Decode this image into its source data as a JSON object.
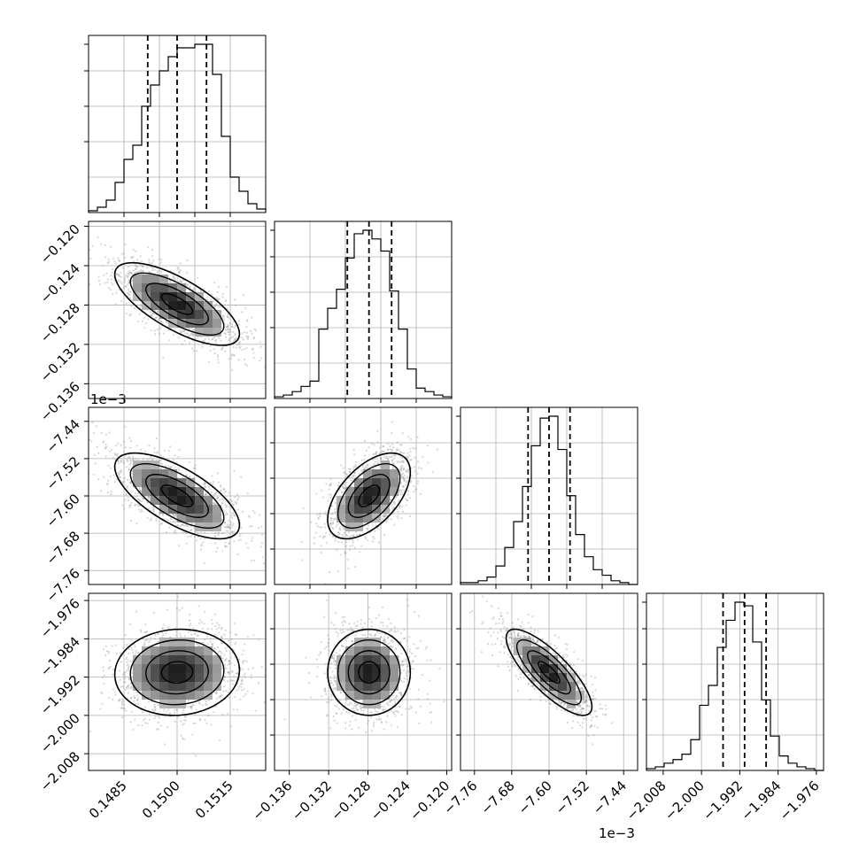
{
  "figure": {
    "type": "corner",
    "parameters": 4,
    "multiplier_label": "1e−3",
    "colors": {
      "frame": "#000000",
      "grid": "#b0b0b0",
      "hist": "#000000",
      "scatter": "#8c8c8c",
      "density": "#000000"
    }
  },
  "chart_data": [
    {
      "type": "histogram",
      "panel": "hist-0",
      "grid": true,
      "xlim": [
        0.1475,
        0.1525
      ],
      "bins": [
        0.1475,
        0.14775,
        0.148,
        0.14825,
        0.1485,
        0.14875,
        0.149,
        0.14925,
        0.1495,
        0.14975,
        0.15,
        0.15025,
        0.1505,
        0.15075,
        0.151,
        0.15125,
        0.1515,
        0.15175,
        0.152,
        0.15225,
        0.1525
      ],
      "counts": [
        0.01,
        0.03,
        0.07,
        0.17,
        0.3,
        0.38,
        0.6,
        0.72,
        0.8,
        0.88,
        0.93,
        0.93,
        0.95,
        0.95,
        0.78,
        0.43,
        0.2,
        0.12,
        0.05,
        0.02
      ],
      "quantiles": [
        0.14917,
        0.15,
        0.15083
      ],
      "ticks": []
    },
    {
      "type": "histogram",
      "panel": "hist-1",
      "grid": true,
      "xlim": [
        -0.1375,
        -0.1195
      ],
      "bins": [
        -0.1375,
        -0.1366,
        -0.1357,
        -0.1348,
        -0.1339,
        -0.133,
        -0.1321,
        -0.1312,
        -0.1303,
        -0.1294,
        -0.1285,
        -0.1276,
        -0.1267,
        -0.1258,
        -0.1249,
        -0.124,
        -0.1231,
        -0.1222,
        -0.1213,
        -0.1204,
        -0.1195
      ],
      "counts": [
        0.01,
        0.02,
        0.04,
        0.07,
        0.1,
        0.4,
        0.52,
        0.63,
        0.81,
        0.95,
        0.97,
        0.92,
        0.85,
        0.62,
        0.4,
        0.17,
        0.06,
        0.04,
        0.02,
        0.01
      ],
      "quantiles": [
        -0.1301,
        -0.1279,
        -0.1256
      ],
      "ticks": []
    },
    {
      "type": "histogram",
      "panel": "hist-2",
      "grid": true,
      "xlim": [
        -7.79,
        -7.41
      ],
      "bins": [
        -7.79,
        -7.771,
        -7.752,
        -7.733,
        -7.714,
        -7.695,
        -7.676,
        -7.657,
        -7.638,
        -7.619,
        -7.6,
        -7.581,
        -7.562,
        -7.543,
        -7.524,
        -7.505,
        -7.486,
        -7.467,
        -7.448,
        -7.429,
        -7.41
      ],
      "counts": [
        0.01,
        0.01,
        0.02,
        0.04,
        0.1,
        0.2,
        0.34,
        0.53,
        0.75,
        0.9,
        0.91,
        0.73,
        0.48,
        0.27,
        0.15,
        0.08,
        0.05,
        0.02,
        0.01,
        0.0
      ],
      "quantiles": [
        -7.645,
        -7.6,
        -7.555
      ],
      "ticks": []
    },
    {
      "type": "histogram",
      "panel": "hist-3",
      "grid": true,
      "xlim": [
        -2.0115,
        -1.9745
      ],
      "bins": [
        -2.0115,
        -2.00965,
        -2.0078,
        -2.00595,
        -2.0041,
        -2.00225,
        -2.0004,
        -1.99855,
        -1.9967,
        -1.99485,
        -1.993,
        -1.99115,
        -1.9893,
        -1.98745,
        -1.9856,
        -1.98375,
        -1.9819,
        -1.98005,
        -1.9782,
        -1.97635,
        -1.9745
      ],
      "counts": [
        0.01,
        0.02,
        0.04,
        0.06,
        0.09,
        0.17,
        0.36,
        0.47,
        0.68,
        0.83,
        0.93,
        0.91,
        0.71,
        0.39,
        0.19,
        0.08,
        0.04,
        0.02,
        0.01,
        0.0
      ],
      "quantiles": [
        -1.9955,
        -1.991,
        -1.9865
      ],
      "ticks": [
        "−2.008",
        "−2.000",
        "−1.992",
        "−1.984",
        "−1.976"
      ],
      "tick_values": [
        -2.008,
        -2.0,
        -1.992,
        -1.984,
        -1.976
      ]
    },
    {
      "type": "heatmap",
      "panel": "pair-1-0",
      "grid": true,
      "x_param": 0,
      "y_param": 1,
      "xlim": [
        0.1475,
        0.1525
      ],
      "ylim": [
        -0.1375,
        -0.1195
      ],
      "center": [
        0.15,
        -0.1279
      ],
      "sd": [
        0.00088,
        0.0021
      ],
      "corr": -0.72,
      "ylabel_ticks": [
        "−0.136",
        "−0.132",
        "−0.128",
        "−0.124",
        "−0.120"
      ],
      "ytick_values": [
        -0.136,
        -0.132,
        -0.128,
        -0.124,
        -0.12
      ]
    },
    {
      "type": "heatmap",
      "panel": "pair-2-0",
      "grid": true,
      "x_param": 0,
      "y_param": 2,
      "xlim": [
        0.1475,
        0.1525
      ],
      "ylim": [
        -7.79,
        -7.41
      ],
      "center": [
        0.15,
        -7.6
      ],
      "sd": [
        0.00088,
        0.046
      ],
      "corr": -0.68,
      "ylabel_ticks": [
        "−7.76",
        "−7.68",
        "−7.60",
        "−7.52",
        "−7.44"
      ],
      "ytick_values": [
        -7.76,
        -7.68,
        -7.6,
        -7.52,
        -7.44
      ]
    },
    {
      "type": "heatmap",
      "panel": "pair-2-1",
      "grid": true,
      "x_param": 1,
      "y_param": 2,
      "xlim": [
        -0.1375,
        -0.1195
      ],
      "ylim": [
        -7.79,
        -7.41
      ],
      "center": [
        -0.1279,
        -7.6
      ],
      "sd": [
        0.0021,
        0.046
      ],
      "corr": 0.55
    },
    {
      "type": "heatmap",
      "panel": "pair-3-0",
      "grid": true,
      "x_param": 0,
      "y_param": 3,
      "xlim": [
        0.1475,
        0.1525
      ],
      "ylim": [
        -2.0115,
        -1.9745
      ],
      "center": [
        0.15,
        -1.991
      ],
      "sd": [
        0.00088,
        0.0045
      ],
      "corr": 0.05,
      "ylabel_ticks": [
        "−2.008",
        "−2.000",
        "−1.992",
        "−1.984",
        "−1.976"
      ],
      "ytick_values": [
        -2.008,
        -2.0,
        -1.992,
        -1.984,
        -1.976
      ],
      "xlabel_ticks": [
        "0.1485",
        "0.1500",
        "0.1515"
      ],
      "xtick_values": [
        0.1485,
        0.15,
        0.1515
      ]
    },
    {
      "type": "heatmap",
      "panel": "pair-3-1",
      "grid": true,
      "x_param": 1,
      "y_param": 3,
      "xlim": [
        -0.1375,
        -0.1195
      ],
      "ylim": [
        -2.0115,
        -1.9745
      ],
      "center": [
        -0.1279,
        -1.991
      ],
      "sd": [
        0.0021,
        0.0045
      ],
      "corr": 0.0,
      "xlabel_ticks": [
        "−0.136",
        "−0.132",
        "−0.128",
        "−0.124",
        "−0.120"
      ],
      "xtick_values": [
        -0.136,
        -0.132,
        -0.128,
        -0.124,
        -0.12
      ]
    },
    {
      "type": "heatmap",
      "panel": "pair-3-2",
      "grid": true,
      "x_param": 2,
      "y_param": 3,
      "xlim": [
        -7.79,
        -7.41
      ],
      "ylim": [
        -2.0115,
        -1.9745
      ],
      "center": [
        -7.6,
        -1.991
      ],
      "sd": [
        0.046,
        0.0045
      ],
      "corr": -0.8,
      "xlabel_ticks": [
        "−7.76",
        "−7.68",
        "−7.60",
        "−7.52",
        "−7.44"
      ],
      "xtick_values": [
        -7.76,
        -7.68,
        -7.6,
        -7.52,
        -7.44
      ]
    }
  ]
}
